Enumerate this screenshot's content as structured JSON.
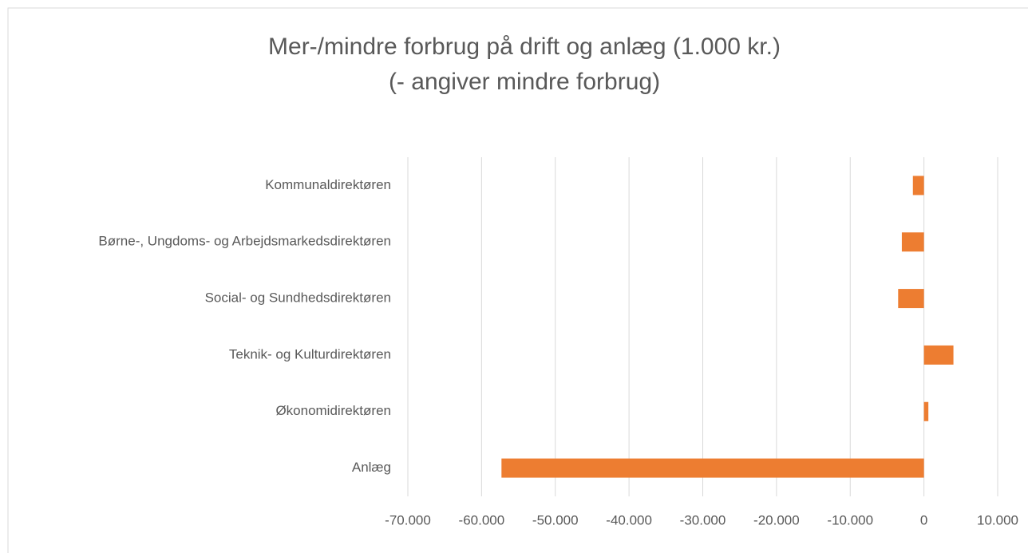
{
  "chart_data": {
    "type": "hbar",
    "title": "Mer-/mindre forbrug på drift og anlæg (1.000 kr.)",
    "subtitle": "(- angiver mindre forbrug)",
    "categories": [
      "Kommunaldirektøren",
      "Børne-, Ungdoms- og Arbejdsmarkedsdirektøren",
      "Social- og Sundhedsdirektøren",
      "Teknik- og Kulturdirektøren",
      "Økonomidirektøren",
      "Anlæg"
    ],
    "values": [
      -1500,
      -3000,
      -3500,
      4000,
      600,
      -57300
    ],
    "color": "#ed7d31",
    "xlim": [
      -70000,
      10000
    ],
    "xticks": [
      {
        "value": -70000,
        "label": "-70.000"
      },
      {
        "value": -60000,
        "label": "-60.000"
      },
      {
        "value": -50000,
        "label": "-50.000"
      },
      {
        "value": -40000,
        "label": "-40.000"
      },
      {
        "value": -30000,
        "label": "-30.000"
      },
      {
        "value": -20000,
        "label": "-20.000"
      },
      {
        "value": -10000,
        "label": "-10.000"
      },
      0,
      {
        "value": 10000,
        "label": "10.000"
      }
    ],
    "grid": true
  }
}
